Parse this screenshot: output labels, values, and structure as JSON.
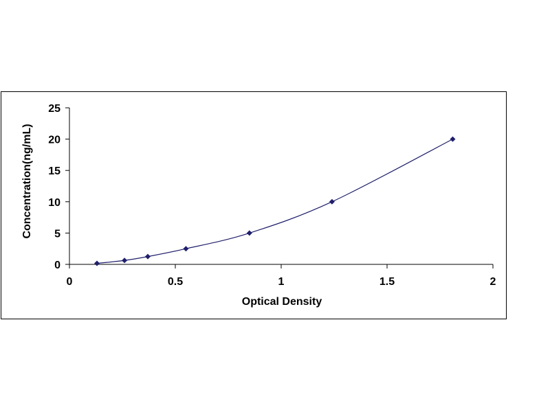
{
  "chart_data": {
    "type": "scatter",
    "title": "",
    "xlabel": "Optical Density",
    "ylabel": "Concentration(ng/mL)",
    "xlim": [
      0,
      2
    ],
    "ylim": [
      0,
      25
    ],
    "x_ticks": [
      "0",
      "0.5",
      "1",
      "1.5",
      "2"
    ],
    "y_ticks": [
      "0",
      "5",
      "10",
      "15",
      "20",
      "25"
    ],
    "grid": false,
    "legend": "none",
    "series": [
      {
        "points": [
          {
            "x": 0.13,
            "y": 0.16
          },
          {
            "x": 0.26,
            "y": 0.63
          },
          {
            "x": 0.37,
            "y": 1.25
          },
          {
            "x": 0.55,
            "y": 2.5
          },
          {
            "x": 0.85,
            "y": 5
          },
          {
            "x": 1.24,
            "y": 10
          },
          {
            "x": 1.81,
            "y": 20
          }
        ],
        "marker": "diamond",
        "trendline": "smooth-curve",
        "color": "#1f1f6b"
      }
    ]
  }
}
